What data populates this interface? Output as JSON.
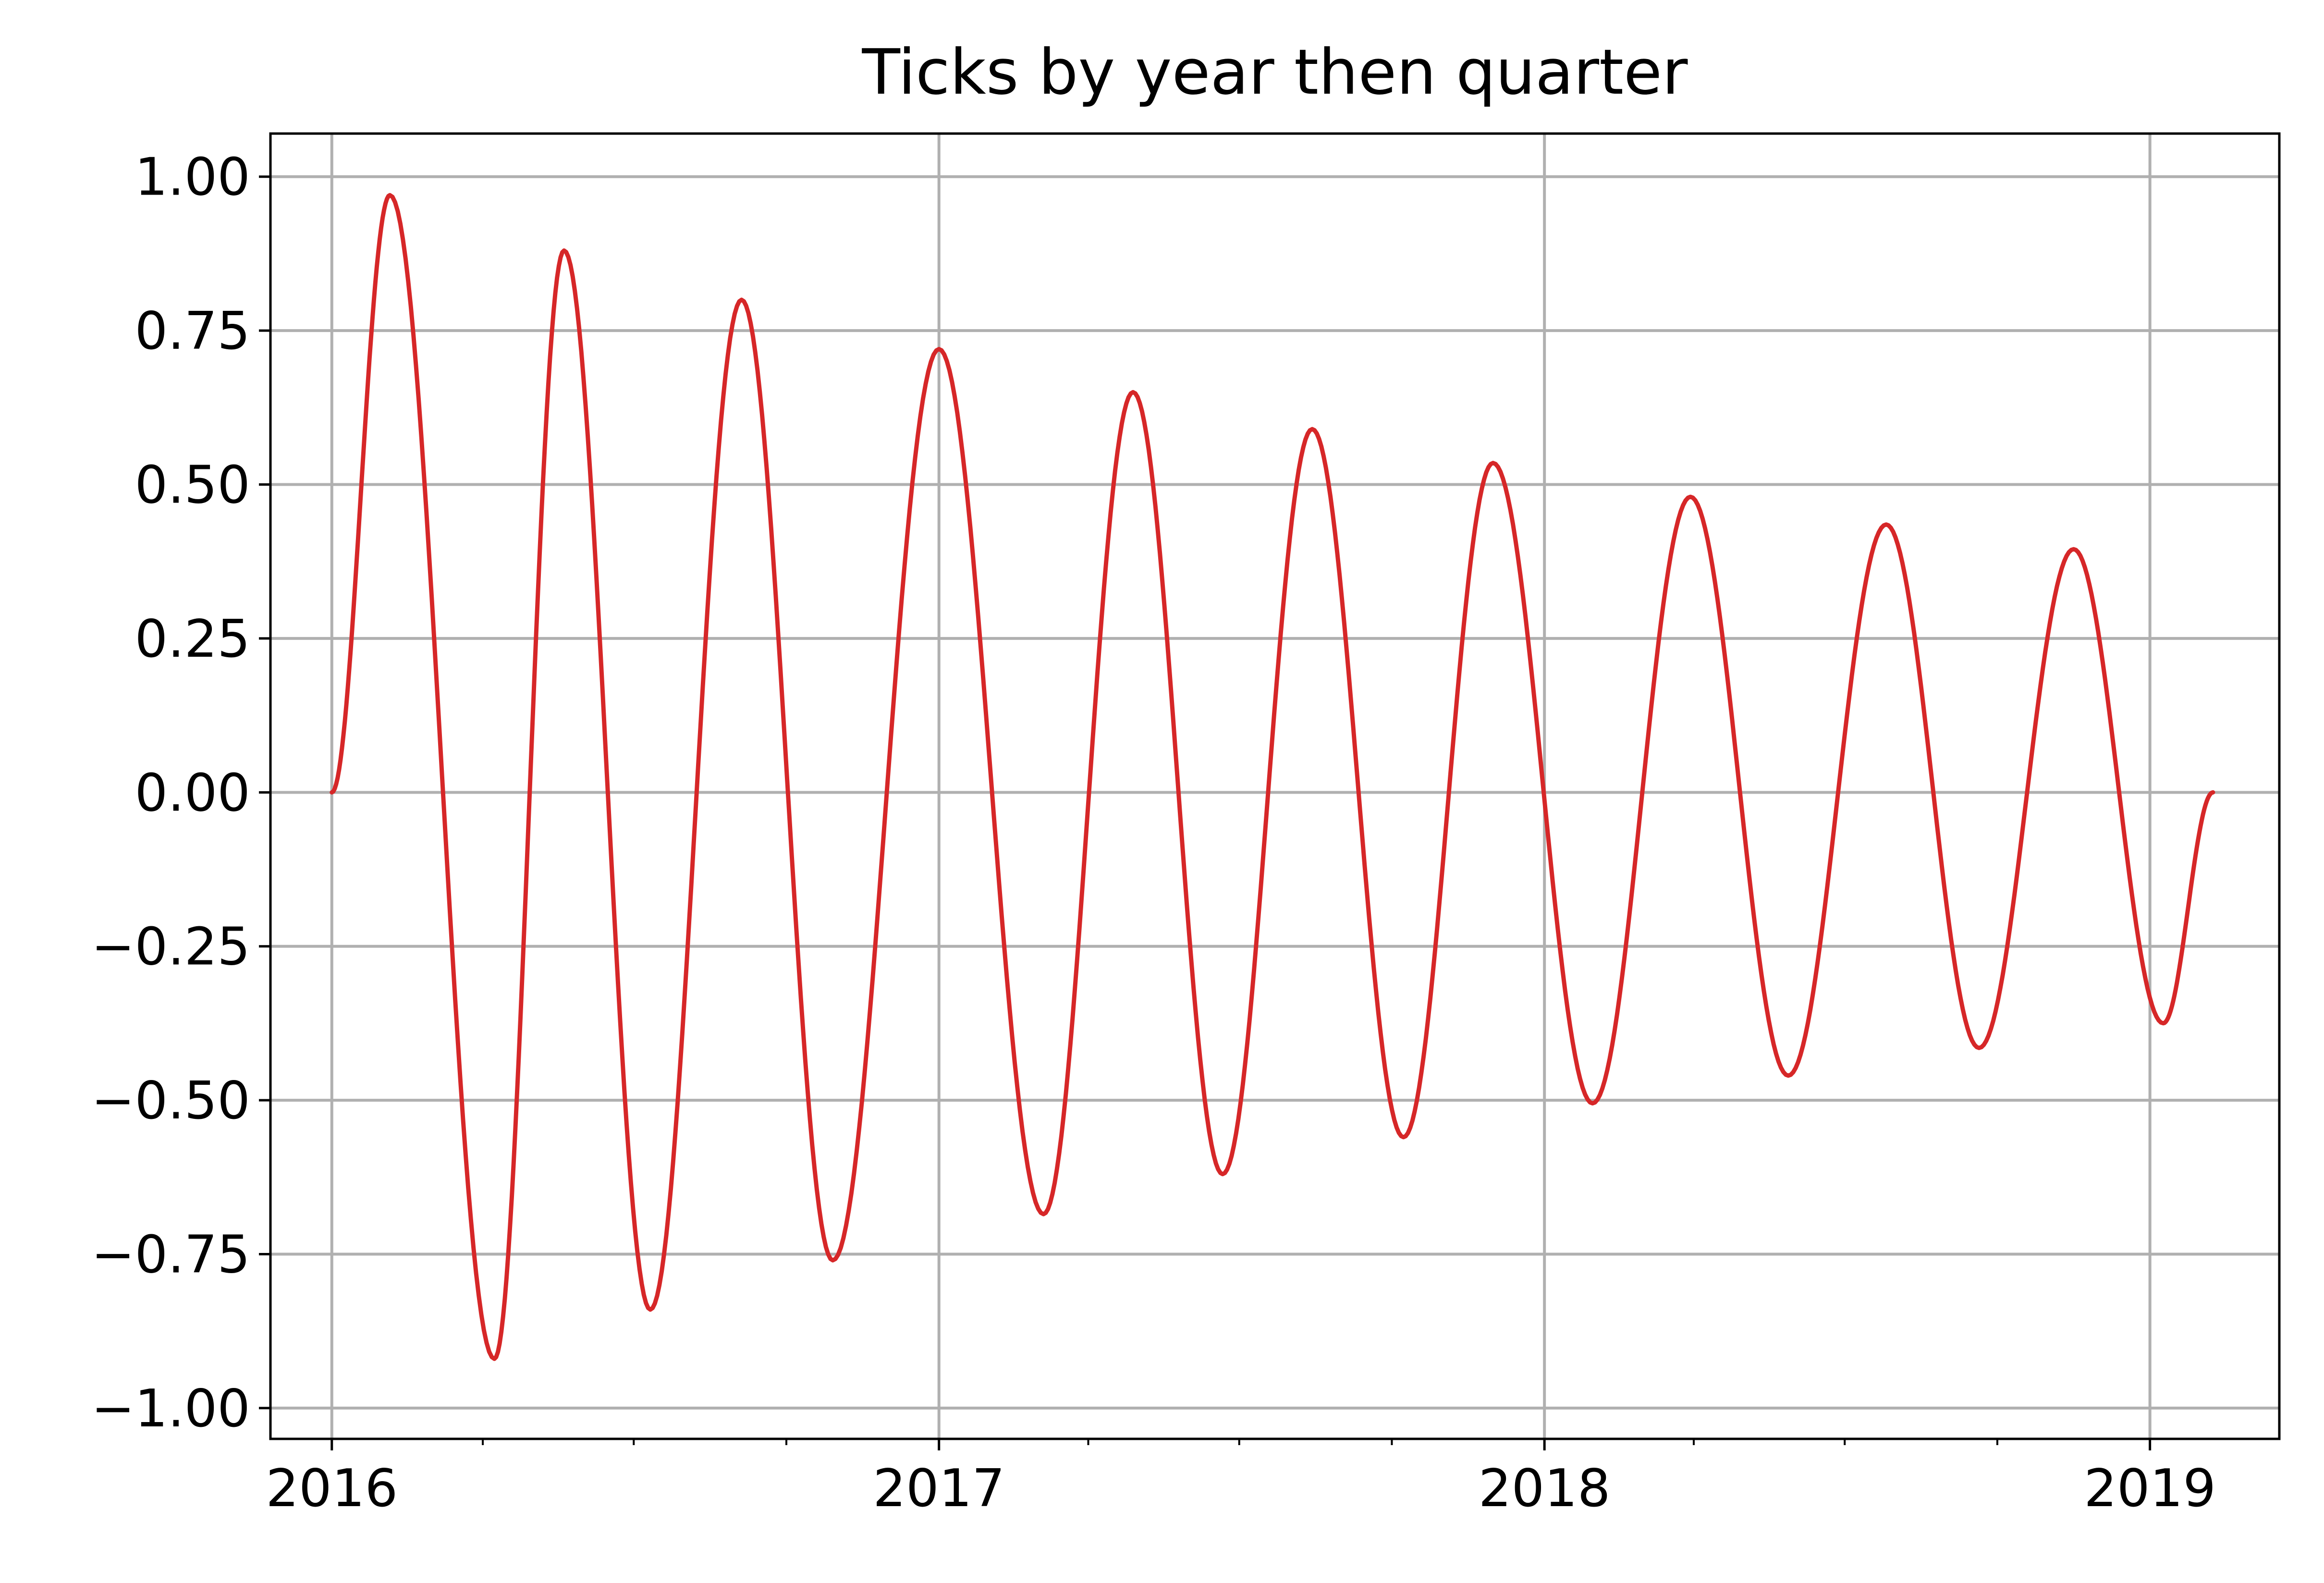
{
  "chart_data": {
    "type": "line",
    "title": "Ticks by year then quarter",
    "xlabel": "",
    "ylabel": "",
    "x_axis_type": "date",
    "xlim": [
      "2015-11-25",
      "2019-03-20"
    ],
    "ylim": [
      -1.05,
      1.07
    ],
    "x_ticks": [
      {
        "date": "2016-01-01",
        "label": "2016"
      },
      {
        "date": "2017-01-01",
        "label": "2017"
      },
      {
        "date": "2018-01-01",
        "label": "2018"
      },
      {
        "date": "2019-01-01",
        "label": "2019"
      }
    ],
    "x_minor_ticks": [
      "2016-04-01",
      "2016-07-01",
      "2016-10-01",
      "2017-04-01",
      "2017-07-01",
      "2017-10-01",
      "2018-04-01",
      "2018-07-01",
      "2018-10-01",
      "2019-04-01"
    ],
    "y_ticks": [
      {
        "value": 1.0,
        "label": "1.00"
      },
      {
        "value": 0.75,
        "label": "0.75"
      },
      {
        "value": 0.5,
        "label": "0.50"
      },
      {
        "value": 0.25,
        "label": "0.25"
      },
      {
        "value": 0.0,
        "label": "0.00"
      },
      {
        "value": -0.25,
        "label": "−0.25"
      },
      {
        "value": -0.5,
        "label": "−0.50"
      },
      {
        "value": -0.75,
        "label": "−0.75"
      },
      {
        "value": -1.0,
        "label": "−1.00"
      }
    ],
    "grid": true,
    "legend": "none",
    "series": [
      {
        "color": "#d62728",
        "points": [
          {
            "x": "2016-01-01",
            "y": 0.0
          },
          {
            "x": "2016-02-05",
            "y": 0.97
          },
          {
            "x": "2016-04-08",
            "y": -0.92
          },
          {
            "x": "2016-05-20",
            "y": 0.88
          },
          {
            "x": "2016-07-11",
            "y": -0.84
          },
          {
            "x": "2016-09-04",
            "y": 0.8
          },
          {
            "x": "2016-10-29",
            "y": -0.76
          },
          {
            "x": "2017-01-01",
            "y": 0.72
          },
          {
            "x": "2017-03-05",
            "y": -0.685
          },
          {
            "x": "2017-04-28",
            "y": 0.65
          },
          {
            "x": "2017-06-21",
            "y": -0.62
          },
          {
            "x": "2017-08-14",
            "y": 0.59
          },
          {
            "x": "2017-10-08",
            "y": -0.56
          },
          {
            "x": "2017-12-01",
            "y": 0.535
          },
          {
            "x": "2018-01-30",
            "y": -0.505
          },
          {
            "x": "2018-03-30",
            "y": 0.48
          },
          {
            "x": "2018-05-28",
            "y": -0.46
          },
          {
            "x": "2018-07-26",
            "y": 0.435
          },
          {
            "x": "2018-09-20",
            "y": -0.415
          },
          {
            "x": "2018-11-16",
            "y": 0.395
          },
          {
            "x": "2019-01-09",
            "y": -0.375
          },
          {
            "x": "2019-02-08",
            "y": 0.0
          }
        ]
      }
    ]
  }
}
